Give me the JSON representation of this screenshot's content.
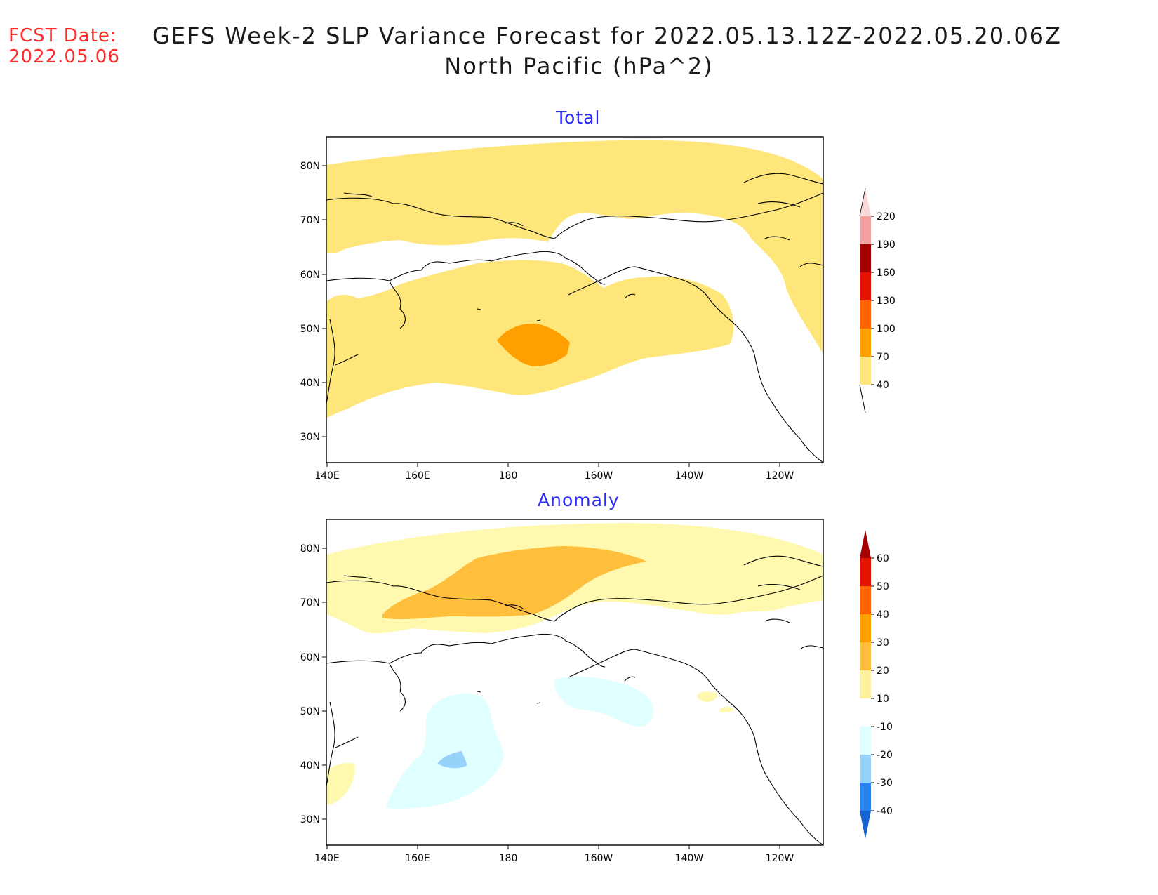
{
  "header": {
    "fcst_label": "FCST Date:",
    "fcst_date": "2022.05.06",
    "title_line1": "GEFS Week-2 SLP Variance Forecast for 2022.05.13.12Z-2022.05.20.06Z",
    "title_line2": "North Pacific (hPa^2)"
  },
  "panels": [
    {
      "title": "Total",
      "lat_labels": [
        "80N",
        "70N",
        "60N",
        "50N",
        "40N",
        "30N"
      ],
      "lon_labels": [
        "140E",
        "160E",
        "180",
        "160W",
        "140W",
        "120W"
      ],
      "colorbar": {
        "levels": [
          "220",
          "190",
          "160",
          "130",
          "100",
          "70",
          "40"
        ],
        "colors": [
          "#fbd8d8",
          "#f4a0a0",
          "#a50000",
          "#e21400",
          "#ff6400",
          "#ffa000",
          "#ffe67a"
        ]
      }
    },
    {
      "title": "Anomaly",
      "lat_labels": [
        "80N",
        "70N",
        "60N",
        "50N",
        "40N",
        "30N"
      ],
      "lon_labels": [
        "140E",
        "160E",
        "180",
        "160W",
        "140W",
        "120W"
      ],
      "colorbar": {
        "levels": [
          "60",
          "50",
          "40",
          "30",
          "20",
          "10",
          "-10",
          "-20",
          "-30",
          "-40"
        ],
        "colors": [
          "#a50000",
          "#e21400",
          "#ff6400",
          "#ffa000",
          "#ffbe3c",
          "#fff0a0",
          "#ffffff",
          "#e0ffff",
          "#96d2fa",
          "#2882f0",
          "#1464d2"
        ]
      }
    }
  ],
  "colors": {
    "total_fill_40_70": "#ffe67a",
    "total_fill_70_100": "#ffa000",
    "anom_fill_10_20": "#fff9b0",
    "anom_fill_20_30": "#ffbe3c",
    "anom_fill_neg10_neg20": "#e0ffff",
    "anom_fill_neg20_neg30": "#96d2fa",
    "fcst_red": "#ff2a2a",
    "panel_title_blue": "#2a2aff"
  }
}
